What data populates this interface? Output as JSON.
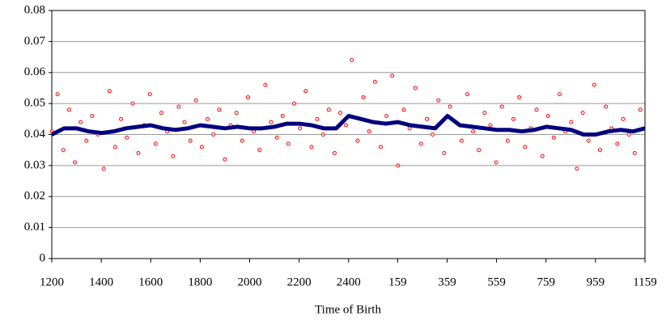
{
  "chart_data": {
    "type": "scatter",
    "x_label": "Time of Birth",
    "xlim": [
      0,
      1439
    ],
    "xticks": [
      {
        "value": 0,
        "label": "1200"
      },
      {
        "value": 120,
        "label": "1400"
      },
      {
        "value": 240,
        "label": "1600"
      },
      {
        "value": 360,
        "label": "1800"
      },
      {
        "value": 480,
        "label": "2000"
      },
      {
        "value": 600,
        "label": "2200"
      },
      {
        "value": 720,
        "label": "2400"
      },
      {
        "value": 839,
        "label": "159"
      },
      {
        "value": 959,
        "label": "359"
      },
      {
        "value": 1079,
        "label": "559"
      },
      {
        "value": 1199,
        "label": "759"
      },
      {
        "value": 1319,
        "label": "959"
      },
      {
        "value": 1439,
        "label": "1159"
      }
    ],
    "ylim": [
      0,
      0.08
    ],
    "yticks": [
      0,
      0.01,
      0.02,
      0.03,
      0.04,
      0.05,
      0.06,
      0.07,
      0.08
    ],
    "grid": true,
    "series": [
      {
        "color": "#ff0000",
        "x": [
          0,
          14,
          28,
          42,
          56,
          70,
          84,
          98,
          112,
          126,
          140,
          154,
          168,
          182,
          196,
          210,
          224,
          238,
          252,
          266,
          280,
          294,
          308,
          322,
          336,
          350,
          364,
          378,
          392,
          406,
          420,
          434,
          448,
          462,
          476,
          490,
          504,
          518,
          532,
          546,
          560,
          574,
          588,
          602,
          616,
          630,
          644,
          658,
          672,
          686,
          700,
          714,
          728,
          742,
          756,
          770,
          784,
          798,
          812,
          826,
          840,
          854,
          868,
          882,
          896,
          910,
          924,
          938,
          952,
          966,
          980,
          994,
          1008,
          1022,
          1036,
          1050,
          1064,
          1078,
          1092,
          1106,
          1120,
          1134,
          1148,
          1162,
          1176,
          1190,
          1204,
          1218,
          1232,
          1246,
          1260,
          1274,
          1288,
          1302,
          1316,
          1330,
          1344,
          1358,
          1372,
          1386,
          1400,
          1414,
          1428
        ],
        "values": [
          0.041,
          0.053,
          0.035,
          0.048,
          0.031,
          0.044,
          0.038,
          0.046,
          0.04,
          0.029,
          0.054,
          0.036,
          0.045,
          0.039,
          0.05,
          0.034,
          0.043,
          0.053,
          0.037,
          0.047,
          0.041,
          0.033,
          0.049,
          0.044,
          0.038,
          0.051,
          0.036,
          0.045,
          0.04,
          0.048,
          0.032,
          0.043,
          0.047,
          0.038,
          0.052,
          0.041,
          0.035,
          0.056,
          0.044,
          0.039,
          0.046,
          0.037,
          0.05,
          0.042,
          0.054,
          0.036,
          0.045,
          0.04,
          0.048,
          0.034,
          0.047,
          0.043,
          0.064,
          0.038,
          0.052,
          0.041,
          0.057,
          0.036,
          0.046,
          0.059,
          0.03,
          0.048,
          0.042,
          0.055,
          0.037,
          0.045,
          0.04,
          0.051,
          0.034,
          0.049,
          0.044,
          0.038,
          0.053,
          0.041,
          0.035,
          0.047,
          0.043,
          0.031,
          0.049,
          0.038,
          0.045,
          0.052,
          0.036,
          0.042,
          0.048,
          0.033,
          0.046,
          0.039,
          0.053,
          0.041,
          0.044,
          0.029,
          0.047,
          0.038,
          0.056,
          0.035,
          0.049,
          0.042,
          0.037,
          0.045,
          0.04,
          0.034,
          0.048
        ]
      },
      {
        "color": "#00007f",
        "x": [
          0,
          30,
          60,
          90,
          120,
          150,
          180,
          210,
          240,
          270,
          300,
          330,
          360,
          390,
          420,
          450,
          480,
          510,
          540,
          570,
          600,
          630,
          660,
          690,
          720,
          750,
          780,
          810,
          840,
          870,
          900,
          930,
          960,
          990,
          1020,
          1050,
          1080,
          1110,
          1140,
          1170,
          1200,
          1230,
          1260,
          1290,
          1320,
          1350,
          1380,
          1410,
          1439
        ],
        "values": [
          0.04,
          0.042,
          0.042,
          0.041,
          0.0405,
          0.041,
          0.042,
          0.0425,
          0.043,
          0.042,
          0.0415,
          0.042,
          0.043,
          0.0425,
          0.042,
          0.0425,
          0.042,
          0.042,
          0.0425,
          0.0435,
          0.0435,
          0.043,
          0.042,
          0.042,
          0.046,
          0.045,
          0.044,
          0.0435,
          0.044,
          0.043,
          0.0425,
          0.042,
          0.046,
          0.043,
          0.0425,
          0.042,
          0.0415,
          0.0415,
          0.041,
          0.0415,
          0.0425,
          0.042,
          0.0415,
          0.04,
          0.04,
          0.041,
          0.0415,
          0.041,
          0.042
        ]
      }
    ]
  }
}
